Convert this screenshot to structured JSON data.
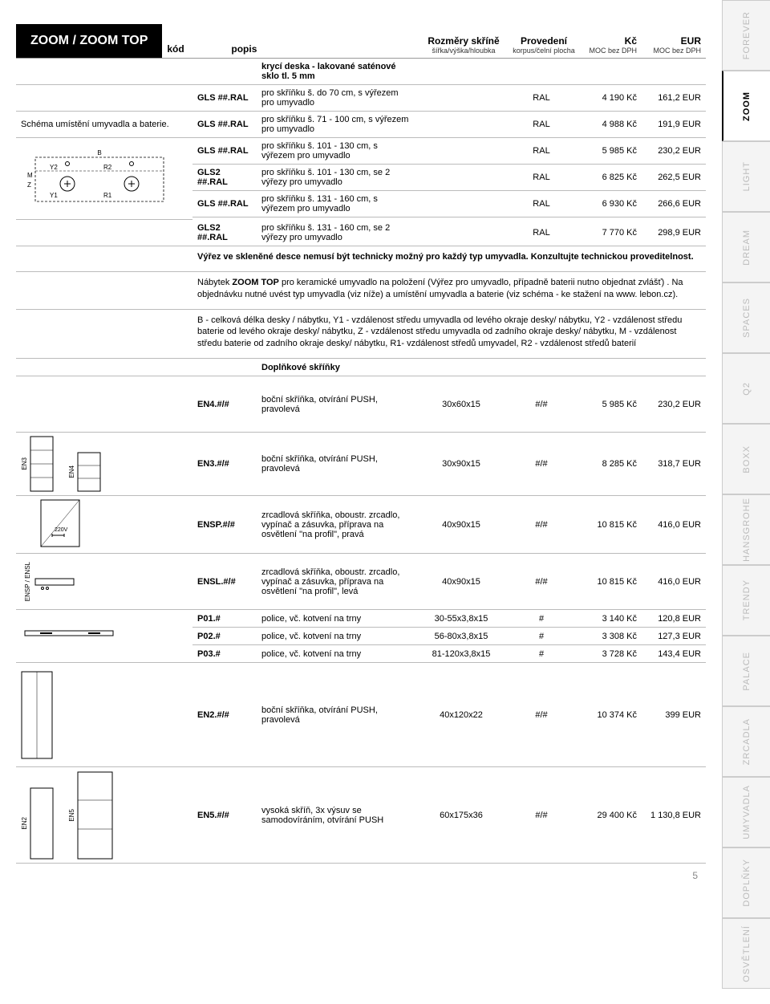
{
  "header": {
    "title": "ZOOM / ZOOM TOP",
    "cols": {
      "kod": "kód",
      "popis": "popis",
      "rozmer": "Rozměry skříně",
      "rozmer_sub": "šířka/výška/hloubka",
      "prov": "Provedení",
      "prov_sub": "korpus/čelní plocha",
      "kc": "Kč",
      "kc_sub": "MOC bez DPH",
      "eur": "EUR",
      "eur_sub": "MOC bez DPH"
    }
  },
  "schema_caption": "Schéma umístění umyvadla a baterie.",
  "section1_title": "krycí deska - lakované saténové sklo tl. 5 mm",
  "rows1": [
    {
      "kod": "GLS ##.RAL",
      "popis": "pro skříňku š. do 70 cm, s výřezem pro umyvadlo",
      "dim": "",
      "prov": "RAL",
      "kc": "4 190 Kč",
      "eur": "161,2 EUR"
    },
    {
      "kod": "GLS ##.RAL",
      "popis": "pro skříňku š. 71 - 100 cm, s výřezem pro umyvadlo",
      "dim": "",
      "prov": "RAL",
      "kc": "4 988 Kč",
      "eur": "191,9 EUR"
    },
    {
      "kod": "GLS ##.RAL",
      "popis": "pro skříňku š. 101 - 130 cm, s výřezem pro umyvadlo",
      "dim": "",
      "prov": "RAL",
      "kc": "5 985 Kč",
      "eur": "230,2 EUR"
    },
    {
      "kod": "GLS2 ##.RAL",
      "popis": "pro skříňku š. 101 - 130 cm, se 2 výřezy pro umyvadlo",
      "dim": "",
      "prov": "RAL",
      "kc": "6 825 Kč",
      "eur": "262,5 EUR"
    },
    {
      "kod": "GLS ##.RAL",
      "popis": "pro skříňku š. 131 - 160 cm, s výřezem pro umyvadlo",
      "dim": "",
      "prov": "RAL",
      "kc": "6 930 Kč",
      "eur": "266,6 EUR"
    },
    {
      "kod": "GLS2 ##.RAL",
      "popis": "pro skříňku š. 131 - 160 cm, se 2 výřezy pro umyvadlo",
      "dim": "",
      "prov": "RAL",
      "kc": "7 770 Kč",
      "eur": "298,9 EUR"
    }
  ],
  "note1_bold": "Výřez ve skleněné desce nemusí být technicky možný pro každý typ umyvadla. Konzultujte technickou proveditelnost.",
  "note2_a": "Nábytek ",
  "note2_b": "ZOOM TOP",
  "note2_c": " pro keramické umyvadlo na položení (Výřez pro umyvadlo, případně baterii nutno objednat zvlášť) . Na objednávku nutné uvést typ umyvadla (viz níže) a umístění umyvadla a baterie (viz schéma - ke stažení na www. lebon.cz).",
  "note3": "B - celková délka desky / nábytku, Y1 - vzdálenost středu umyvadla od levého okraje desky/ nábytku, Y2 - vzdálenost středu baterie od levého okraje desky/ nábytku, Z - vzdálenost středu umyvadla od zadního okraje desky/ nábytku, M - vzdálenost středu baterie od zadního okraje desky/ nábytku, R1- vzdálenost středů umyvadel, R2 - vzdálenost středů baterií",
  "section2_title": "Doplňkové skříňky",
  "rows2": [
    {
      "kod": "EN4.#/#",
      "popis": "boční skříňka, otvírání PUSH, pravolevá",
      "dim": "30x60x15",
      "prov": "#/#",
      "kc": "5 985 Kč",
      "eur": "230,2 EUR"
    },
    {
      "kod": "EN3.#/#",
      "popis": "boční skříňka, otvírání PUSH, pravolevá",
      "dim": "30x90x15",
      "prov": "#/#",
      "kc": "8 285 Kč",
      "eur": "318,7 EUR"
    },
    {
      "kod": "ENSP.#/#",
      "popis": "zrcadlová skříňka, oboustr. zrcadlo, vypínač a zásuvka, příprava na osvětlení \"na profil\", pravá",
      "dim": "40x90x15",
      "prov": "#/#",
      "kc": "10 815 Kč",
      "eur": "416,0 EUR"
    },
    {
      "kod": "ENSL.#/#",
      "popis": "zrcadlová skříňka, oboustr. zrcadlo, vypínač a zásuvka, příprava na osvětlení \"na profil\", levá",
      "dim": "40x90x15",
      "prov": "#/#",
      "kc": "10 815 Kč",
      "eur": "416,0 EUR"
    },
    {
      "kod": "P01.#",
      "popis": "police, vč. kotvení na trny",
      "dim": "30-55x3,8x15",
      "prov": "#",
      "kc": "3 140 Kč",
      "eur": "120,8 EUR"
    },
    {
      "kod": "P02.#",
      "popis": "police, vč. kotvení na trny",
      "dim": "56-80x3,8x15",
      "prov": "#",
      "kc": "3 308 Kč",
      "eur": "127,3 EUR"
    },
    {
      "kod": "P03.#",
      "popis": "police, vč. kotvení na trny",
      "dim": "81-120x3,8x15",
      "prov": "#",
      "kc": "3 728 Kč",
      "eur": "143,4 EUR"
    },
    {
      "kod": "EN2.#/#",
      "popis": "boční skříňka, otvírání PUSH, pravolevá",
      "dim": "40x120x22",
      "prov": "#/#",
      "kc": "10 374 Kč",
      "eur": "399 EUR"
    },
    {
      "kod": "EN5.#/#",
      "popis": "vysoká skříň, 3x výsuv se samodovíráním, otvírání PUSH",
      "dim": "60x175x36",
      "prov": "#/#",
      "kc": "29 400 Kč",
      "eur": "1 130,8 EUR"
    }
  ],
  "tabs": [
    "FOREVER",
    "ZOOM",
    "LIGHT",
    "DREAM",
    "SPACES",
    "Q2",
    "BOXX",
    "HANSGROHE",
    "TRENDY",
    "PALACE",
    "ZRCADLA",
    "UMYVADLA",
    "DOPLŇKY",
    "OSVĚTLENÍ"
  ],
  "active_tab": 1,
  "page_number": "5",
  "diagram_labels": {
    "B": "B",
    "Y1": "Y1",
    "Y2": "Y2",
    "R1": "R1",
    "R2": "R2",
    "Z": "Z",
    "M": "M",
    "EN3": "EN3",
    "EN4": "EN4",
    "ENSP": "ENSP / ENSL",
    "EN2": "EN2",
    "EN5": "EN5"
  }
}
